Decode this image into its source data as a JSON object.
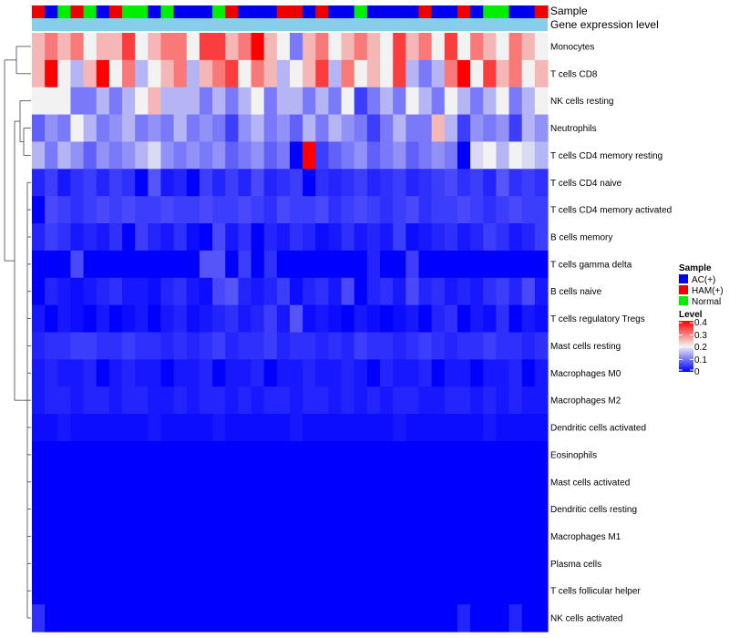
{
  "chart_data": {
    "type": "heatmap",
    "title": "",
    "annotation_labels": [
      "Sample",
      "Gene expression level"
    ],
    "sample_groups": [
      "HAM(+)",
      "AC(+)",
      "Normal",
      "HAM(+)",
      "Normal",
      "AC(+)",
      "HAM(+)",
      "Normal",
      "Normal",
      "AC(+)",
      "Normal",
      "AC(+)",
      "AC(+)",
      "AC(+)",
      "Normal",
      "HAM(+)",
      "AC(+)",
      "AC(+)",
      "AC(+)",
      "HAM(+)",
      "HAM(+)",
      "AC(+)",
      "HAM(+)",
      "AC(+)",
      "AC(+)",
      "Normal",
      "AC(+)",
      "AC(+)",
      "AC(+)",
      "AC(+)",
      "HAM(+)",
      "AC(+)",
      "AC(+)",
      "HAM(+)",
      "AC(+)",
      "Normal",
      "Normal",
      "AC(+)",
      "AC(+)",
      "HAM(+)"
    ],
    "gene_expression_level_color": "#87ceeb",
    "rows": [
      "Monocytes",
      "T cells CD8",
      "NK cells resting",
      "Neutrophils",
      "T cells CD4 memory resting",
      "T cells CD4 naive",
      "T cells CD4 memory activated",
      "B cells memory",
      "T cells gamma delta",
      "B cells naive",
      "T cells regulatory  Tregs",
      "Mast cells resting",
      "Macrophages M0",
      "Macrophages M2",
      "Dendritic cells activated",
      "Eosinophils",
      "Mast cells activated",
      "Dendritic cells resting",
      "Macrophages M1",
      "Plasma cells",
      "T cells follicular helper",
      "NK cells activated"
    ],
    "values": [
      [
        0.25,
        0.3,
        0.25,
        0.3,
        0.2,
        0.25,
        0.25,
        0.35,
        0.2,
        0.25,
        0.3,
        0.3,
        0.2,
        0.35,
        0.35,
        0.25,
        0.3,
        0.4,
        0.25,
        0.2,
        0.1,
        0.25,
        0.3,
        0.2,
        0.25,
        0.3,
        0.25,
        0.2,
        0.35,
        0.25,
        0.3,
        0.2,
        0.35,
        0.2,
        0.3,
        0.25,
        0.2,
        0.3,
        0.25,
        0.2
      ],
      [
        0.25,
        0.4,
        0.2,
        0.15,
        0.25,
        0.4,
        0.2,
        0.3,
        0.15,
        0.2,
        0.25,
        0.3,
        0.15,
        0.25,
        0.3,
        0.35,
        0.2,
        0.3,
        0.25,
        0.15,
        0.2,
        0.25,
        0.35,
        0.15,
        0.3,
        0.2,
        0.25,
        0.2,
        0.35,
        0.15,
        0.1,
        0.15,
        0.3,
        0.4,
        0.2,
        0.35,
        0.25,
        0.3,
        0.2,
        0.25
      ],
      [
        0.2,
        0.2,
        0.2,
        0.1,
        0.1,
        0.15,
        0.1,
        0.15,
        0.2,
        0.25,
        0.15,
        0.15,
        0.15,
        0.1,
        0.15,
        0.1,
        0.15,
        0.2,
        0.1,
        0.15,
        0.15,
        0.1,
        0.15,
        0.1,
        0.2,
        0.05,
        0.1,
        0.15,
        0.1,
        0.2,
        0.15,
        0.1,
        0.2,
        0.15,
        0.1,
        0.15,
        0.2,
        0.1,
        0.15,
        0.2
      ],
      [
        0.08,
        0.12,
        0.1,
        0.2,
        0.15,
        0.1,
        0.12,
        0.15,
        0.1,
        0.12,
        0.1,
        0.15,
        0.1,
        0.12,
        0.1,
        0.05,
        0.12,
        0.15,
        0.1,
        0.12,
        0.08,
        0.15,
        0.1,
        0.15,
        0.12,
        0.1,
        0.05,
        0.1,
        0.15,
        0.1,
        0.1,
        0.25,
        0.15,
        0.05,
        0.12,
        0.1,
        0.12,
        0.05,
        0.15,
        0.12
      ],
      [
        0.15,
        0.1,
        0.15,
        0.12,
        0.08,
        0.12,
        0.1,
        0.12,
        0.15,
        0.18,
        0.12,
        0.1,
        0.12,
        0.1,
        0.12,
        0.08,
        0.1,
        0.12,
        0.08,
        0.1,
        0.0,
        0.4,
        0.05,
        0.08,
        0.1,
        0.12,
        0.08,
        0.1,
        0.12,
        0.08,
        0.1,
        0.12,
        0.1,
        0.0,
        0.18,
        0.2,
        0.15,
        0.2,
        0.18,
        0.15
      ],
      [
        0.03,
        0.05,
        0.02,
        0.04,
        0.05,
        0.03,
        0.05,
        0.04,
        0.0,
        0.07,
        0.02,
        0.03,
        0.0,
        0.05,
        0.03,
        0.05,
        0.03,
        0.06,
        0.03,
        0.04,
        0.05,
        0.0,
        0.04,
        0.03,
        0.04,
        0.05,
        0.03,
        0.04,
        0.05,
        0.03,
        0.04,
        0.05,
        0.06,
        0.04,
        0.05,
        0.03,
        0.07,
        0.04,
        0.05,
        0.04
      ],
      [
        0.0,
        0.06,
        0.05,
        0.04,
        0.05,
        0.06,
        0.05,
        0.06,
        0.05,
        0.05,
        0.06,
        0.05,
        0.05,
        0.06,
        0.05,
        0.05,
        0.06,
        0.05,
        0.04,
        0.06,
        0.05,
        0.05,
        0.06,
        0.04,
        0.05,
        0.06,
        0.05,
        0.04,
        0.05,
        0.06,
        0.04,
        0.05,
        0.05,
        0.06,
        0.05,
        0.04,
        0.05,
        0.06,
        0.05,
        0.05
      ],
      [
        0.03,
        0.05,
        0.04,
        0.02,
        0.03,
        0.02,
        0.04,
        0.0,
        0.05,
        0.03,
        0.02,
        0.04,
        0.01,
        0.0,
        0.06,
        0.02,
        0.04,
        0.0,
        0.03,
        0.02,
        0.04,
        0.03,
        0.01,
        0.02,
        0.04,
        0.02,
        0.03,
        0.02,
        0.05,
        0.01,
        0.02,
        0.03,
        0.04,
        0.02,
        0.03,
        0.05,
        0.04,
        0.02,
        0.03,
        0.05
      ],
      [
        0.0,
        0.0,
        0.0,
        0.06,
        0.0,
        0.0,
        0.0,
        0.0,
        0.0,
        0.0,
        0.0,
        0.0,
        0.0,
        0.07,
        0.07,
        0.0,
        0.05,
        0.0,
        0.04,
        0.0,
        0.0,
        0.0,
        0.0,
        0.0,
        0.0,
        0.0,
        0.03,
        0.0,
        0.0,
        0.05,
        0.0,
        0.0,
        0.0,
        0.0,
        0.0,
        0.0,
        0.0,
        0.0,
        0.0,
        0.0
      ],
      [
        0.0,
        0.03,
        0.02,
        0.01,
        0.02,
        0.03,
        0.04,
        0.02,
        0.02,
        0.01,
        0.03,
        0.04,
        0.02,
        0.01,
        0.06,
        0.07,
        0.03,
        0.02,
        0.03,
        0.05,
        0.01,
        0.03,
        0.04,
        0.02,
        0.06,
        0.0,
        0.03,
        0.04,
        0.02,
        0.06,
        0.03,
        0.04,
        0.02,
        0.03,
        0.02,
        0.04,
        0.05,
        0.03,
        0.06,
        0.02
      ],
      [
        0.02,
        0.0,
        0.02,
        0.01,
        0.0,
        0.02,
        0.0,
        0.01,
        0.02,
        0.0,
        0.02,
        0.03,
        0.01,
        0.02,
        0.03,
        0.04,
        0.02,
        0.03,
        0.05,
        0.02,
        0.07,
        0.01,
        0.02,
        0.01,
        0.0,
        0.02,
        0.01,
        0.0,
        0.01,
        0.02,
        0.0,
        0.03,
        0.04,
        0.0,
        0.02,
        0.01,
        0.04,
        0.0,
        0.02,
        0.01
      ],
      [
        0.03,
        0.04,
        0.04,
        0.05,
        0.05,
        0.04,
        0.04,
        0.05,
        0.04,
        0.04,
        0.03,
        0.04,
        0.03,
        0.04,
        0.05,
        0.03,
        0.04,
        0.04,
        0.05,
        0.03,
        0.04,
        0.04,
        0.03,
        0.04,
        0.03,
        0.05,
        0.04,
        0.04,
        0.03,
        0.04,
        0.05,
        0.04,
        0.03,
        0.04,
        0.04,
        0.05,
        0.04,
        0.04,
        0.03,
        0.04
      ],
      [
        0.02,
        0.03,
        0.02,
        0.02,
        0.03,
        0.0,
        0.02,
        0.03,
        0.02,
        0.02,
        0.0,
        0.02,
        0.02,
        0.03,
        0.0,
        0.02,
        0.02,
        0.03,
        0.0,
        0.02,
        0.02,
        0.03,
        0.02,
        0.02,
        0.03,
        0.02,
        0.0,
        0.03,
        0.02,
        0.02,
        0.03,
        0.0,
        0.02,
        0.02,
        0.0,
        0.02,
        0.02,
        0.03,
        0.0,
        0.02
      ],
      [
        0.02,
        0.03,
        0.03,
        0.02,
        0.03,
        0.03,
        0.02,
        0.03,
        0.03,
        0.02,
        0.02,
        0.03,
        0.02,
        0.03,
        0.03,
        0.02,
        0.03,
        0.02,
        0.03,
        0.03,
        0.02,
        0.03,
        0.03,
        0.02,
        0.03,
        0.02,
        0.03,
        0.02,
        0.03,
        0.03,
        0.02,
        0.02,
        0.03,
        0.03,
        0.02,
        0.03,
        0.02,
        0.03,
        0.02,
        0.02
      ],
      [
        0.01,
        0.01,
        0.02,
        0.01,
        0.01,
        0.01,
        0.01,
        0.01,
        0.01,
        0.02,
        0.01,
        0.01,
        0.01,
        0.01,
        0.02,
        0.01,
        0.01,
        0.01,
        0.01,
        0.01,
        0.02,
        0.01,
        0.01,
        0.01,
        0.01,
        0.01,
        0.01,
        0.01,
        0.02,
        0.01,
        0.01,
        0.01,
        0.01,
        0.01,
        0.01,
        0.02,
        0.01,
        0.01,
        0.01,
        0.01
      ],
      [
        0,
        0,
        0,
        0,
        0,
        0,
        0,
        0,
        0,
        0,
        0,
        0,
        0,
        0,
        0,
        0,
        0,
        0,
        0,
        0,
        0,
        0,
        0,
        0,
        0,
        0,
        0,
        0,
        0,
        0,
        0,
        0,
        0,
        0,
        0,
        0,
        0,
        0,
        0,
        0
      ],
      [
        0,
        0,
        0,
        0,
        0,
        0,
        0,
        0,
        0,
        0,
        0,
        0,
        0,
        0,
        0,
        0,
        0,
        0,
        0,
        0,
        0,
        0,
        0,
        0,
        0,
        0,
        0,
        0,
        0,
        0,
        0,
        0,
        0,
        0,
        0,
        0,
        0,
        0,
        0,
        0
      ],
      [
        0,
        0,
        0,
        0,
        0,
        0,
        0,
        0,
        0,
        0,
        0,
        0,
        0,
        0,
        0,
        0,
        0,
        0,
        0,
        0,
        0,
        0,
        0,
        0,
        0,
        0,
        0,
        0,
        0,
        0,
        0,
        0,
        0,
        0,
        0,
        0,
        0,
        0,
        0,
        0
      ],
      [
        0,
        0,
        0,
        0,
        0,
        0,
        0,
        0,
        0,
        0,
        0,
        0,
        0,
        0,
        0,
        0,
        0,
        0,
        0,
        0,
        0,
        0,
        0,
        0,
        0,
        0,
        0,
        0,
        0,
        0,
        0,
        0,
        0,
        0,
        0,
        0,
        0,
        0,
        0,
        0
      ],
      [
        0,
        0,
        0,
        0,
        0,
        0,
        0,
        0,
        0,
        0,
        0,
        0,
        0,
        0,
        0,
        0,
        0,
        0,
        0,
        0,
        0,
        0,
        0,
        0,
        0,
        0,
        0,
        0,
        0,
        0,
        0,
        0,
        0,
        0,
        0,
        0,
        0,
        0,
        0,
        0
      ],
      [
        0,
        0,
        0,
        0,
        0,
        0,
        0,
        0,
        0,
        0,
        0,
        0,
        0,
        0,
        0,
        0,
        0,
        0,
        0,
        0,
        0,
        0,
        0,
        0,
        0,
        0,
        0,
        0,
        0,
        0,
        0,
        0,
        0,
        0,
        0,
        0,
        0,
        0,
        0,
        0
      ],
      [
        0.04,
        0.0,
        0.0,
        0.0,
        0.0,
        0.0,
        0.0,
        0.0,
        0.0,
        0.0,
        0.0,
        0.0,
        0.0,
        0.0,
        0.0,
        0.0,
        0.0,
        0.0,
        0.0,
        0.0,
        0.0,
        0.0,
        0.0,
        0.0,
        0.0,
        0.0,
        0.0,
        0.0,
        0.0,
        0.0,
        0.0,
        0.0,
        0.0,
        0.03,
        0.0,
        0.0,
        0.0,
        0.03,
        0.0,
        0.0
      ]
    ],
    "legend": {
      "sample": {
        "title": "Sample",
        "entries": [
          {
            "label": "AC(+)",
            "color": "#0000ee"
          },
          {
            "label": "HAM(+)",
            "color": "#ee0000"
          },
          {
            "label": "Normal",
            "color": "#00ee00"
          }
        ]
      },
      "level": {
        "title": "Level",
        "ticks": [
          "0.4",
          "0.3",
          "0.2",
          "0.1",
          "0"
        ],
        "range": [
          0,
          0.4
        ],
        "low_color": "#0000ff",
        "mid_color": "#f2f2f2",
        "high_color": "#ff0000"
      }
    }
  }
}
